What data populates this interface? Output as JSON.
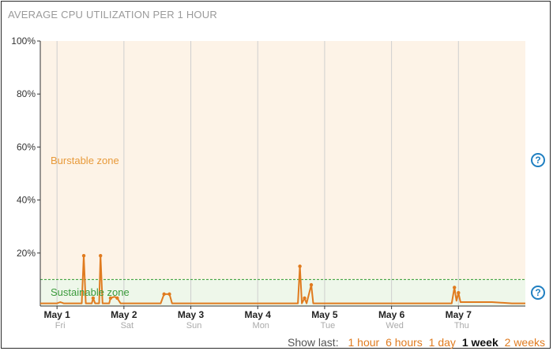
{
  "panel": {
    "title": "AVERAGE CPU UTILIZATION PER 1 HOUR"
  },
  "zones": {
    "burstable_label": "Burstable zone",
    "sustainable_label": "Sustainable zone",
    "burstable_color": "#fdf3e7",
    "sustainable_color": "#eef7ea",
    "threshold_color": "#2e9b2e"
  },
  "help": {
    "glyph": "?"
  },
  "footer": {
    "label": "Show last:",
    "options": [
      {
        "label": "1 hour",
        "active": false
      },
      {
        "label": "6 hours",
        "active": false
      },
      {
        "label": "1 day",
        "active": false
      },
      {
        "label": "1 week",
        "active": true
      },
      {
        "label": "2 weeks",
        "active": false
      }
    ]
  },
  "chart_data": {
    "type": "line",
    "title": "AVERAGE CPU UTILIZATION PER 1 HOUR",
    "ylim": [
      0,
      100
    ],
    "yticks": [
      100,
      80,
      60,
      40,
      20
    ],
    "ytick_labels": [
      "100%",
      "80%",
      "60%",
      "40%",
      "20%"
    ],
    "xlim": [
      0.75,
      8.0
    ],
    "xticks": [
      {
        "x": 1,
        "label": "May 1",
        "sub": "Fri"
      },
      {
        "x": 2,
        "label": "May 2",
        "sub": "Sat"
      },
      {
        "x": 3,
        "label": "May 3",
        "sub": "Sun"
      },
      {
        "x": 4,
        "label": "May 4",
        "sub": "Mon"
      },
      {
        "x": 5,
        "label": "May 5",
        "sub": "Tue"
      },
      {
        "x": 6,
        "label": "May 6",
        "sub": "Wed"
      },
      {
        "x": 7,
        "label": "May 7",
        "sub": "Thu"
      }
    ],
    "sustainable_threshold": 10,
    "line_color": "#e07b1f",
    "series": [
      {
        "points": [
          [
            0.75,
            1
          ],
          [
            1.0,
            1
          ],
          [
            1.05,
            1.5
          ],
          [
            1.1,
            1
          ],
          [
            1.3,
            1
          ],
          [
            1.37,
            1
          ],
          [
            1.4,
            19
          ],
          [
            1.43,
            1
          ],
          [
            1.52,
            1
          ],
          [
            1.54,
            3
          ],
          [
            1.57,
            1
          ],
          [
            1.63,
            1
          ],
          [
            1.65,
            19
          ],
          [
            1.68,
            1
          ],
          [
            1.78,
            1
          ],
          [
            1.8,
            3
          ],
          [
            1.86,
            3.5
          ],
          [
            1.9,
            3
          ],
          [
            1.95,
            1
          ],
          [
            2.1,
            1
          ],
          [
            2.3,
            1
          ],
          [
            2.55,
            1
          ],
          [
            2.6,
            4.5
          ],
          [
            2.68,
            4.5
          ],
          [
            2.72,
            1
          ],
          [
            3.0,
            1
          ],
          [
            3.3,
            1
          ],
          [
            3.6,
            1
          ],
          [
            4.0,
            1
          ],
          [
            4.3,
            1
          ],
          [
            4.5,
            1
          ],
          [
            4.6,
            1
          ],
          [
            4.63,
            15
          ],
          [
            4.66,
            1
          ],
          [
            4.7,
            3
          ],
          [
            4.73,
            1
          ],
          [
            4.8,
            8
          ],
          [
            4.83,
            1
          ],
          [
            5.0,
            1
          ],
          [
            5.5,
            1
          ],
          [
            6.0,
            1
          ],
          [
            6.5,
            1
          ],
          [
            6.9,
            1
          ],
          [
            6.94,
            7
          ],
          [
            6.97,
            2
          ],
          [
            7.0,
            5
          ],
          [
            7.03,
            1.5
          ],
          [
            7.1,
            1.5
          ],
          [
            7.2,
            1.5
          ],
          [
            7.5,
            1.5
          ],
          [
            7.8,
            1
          ],
          [
            8.0,
            1
          ]
        ],
        "markers": [
          [
            1.4,
            19
          ],
          [
            1.65,
            19
          ],
          [
            1.54,
            3
          ],
          [
            1.8,
            3
          ],
          [
            1.9,
            3
          ],
          [
            2.6,
            4.5
          ],
          [
            2.68,
            4.5
          ],
          [
            4.63,
            15
          ],
          [
            4.7,
            3
          ],
          [
            4.8,
            8
          ],
          [
            6.94,
            7
          ],
          [
            7.0,
            5
          ]
        ]
      }
    ],
    "grid": true
  }
}
